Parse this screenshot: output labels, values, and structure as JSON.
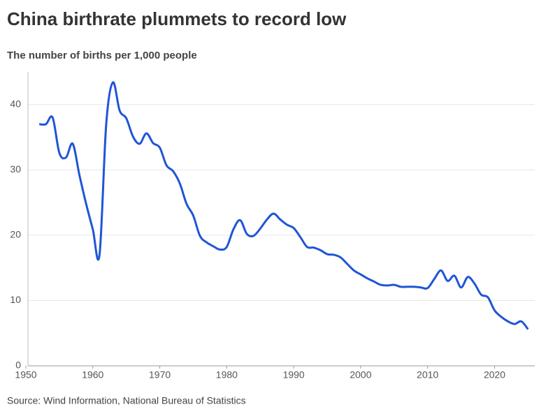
{
  "chart_data": {
    "type": "line",
    "title": "China birthrate plummets to record low",
    "subtitle": "The number of births per 1,000 people",
    "source": "Source: Wind Information, National Bureau of Statistics",
    "x": [
      1952,
      1953,
      1954,
      1955,
      1956,
      1957,
      1958,
      1959,
      1960,
      1961,
      1962,
      1963,
      1964,
      1965,
      1966,
      1967,
      1968,
      1969,
      1970,
      1971,
      1972,
      1973,
      1974,
      1975,
      1976,
      1977,
      1978,
      1979,
      1980,
      1981,
      1982,
      1983,
      1984,
      1985,
      1986,
      1987,
      1988,
      1989,
      1990,
      1991,
      1992,
      1993,
      1994,
      1995,
      1996,
      1997,
      1998,
      1999,
      2000,
      2001,
      2002,
      2003,
      2004,
      2005,
      2006,
      2007,
      2008,
      2009,
      2010,
      2011,
      2012,
      2013,
      2014,
      2015,
      2016,
      2017,
      2018,
      2019,
      2020,
      2021,
      2022,
      2023,
      2024,
      2025
    ],
    "series": [
      {
        "name": "Birth rate",
        "color": "#1f55d6",
        "values": [
          37.0,
          37.0,
          38.0,
          32.6,
          31.9,
          34.0,
          29.2,
          24.8,
          20.9,
          17.0,
          37.0,
          43.4,
          39.1,
          37.9,
          35.1,
          34.0,
          35.6,
          34.1,
          33.4,
          30.7,
          29.8,
          27.9,
          24.8,
          23.0,
          19.9,
          18.9,
          18.3,
          17.8,
          18.2,
          20.9,
          22.3,
          20.2,
          19.9,
          21.0,
          22.4,
          23.3,
          22.4,
          21.6,
          21.1,
          19.7,
          18.2,
          18.1,
          17.7,
          17.1,
          17.0,
          16.6,
          15.6,
          14.6,
          14.0,
          13.4,
          12.9,
          12.4,
          12.3,
          12.4,
          12.1,
          12.1,
          12.1,
          12.0,
          11.9,
          13.3,
          14.6,
          13.0,
          13.8,
          12.0,
          13.6,
          12.6,
          10.9,
          10.5,
          8.5,
          7.5,
          6.8,
          6.4,
          6.8,
          5.6
        ]
      }
    ],
    "xlim": [
      1950,
      2026
    ],
    "xticks": [
      1950,
      1960,
      1970,
      1980,
      1990,
      2000,
      2010,
      2020
    ],
    "ylim": [
      0,
      45
    ],
    "yticks": [
      0,
      10,
      20,
      30,
      40
    ],
    "grid": true
  }
}
